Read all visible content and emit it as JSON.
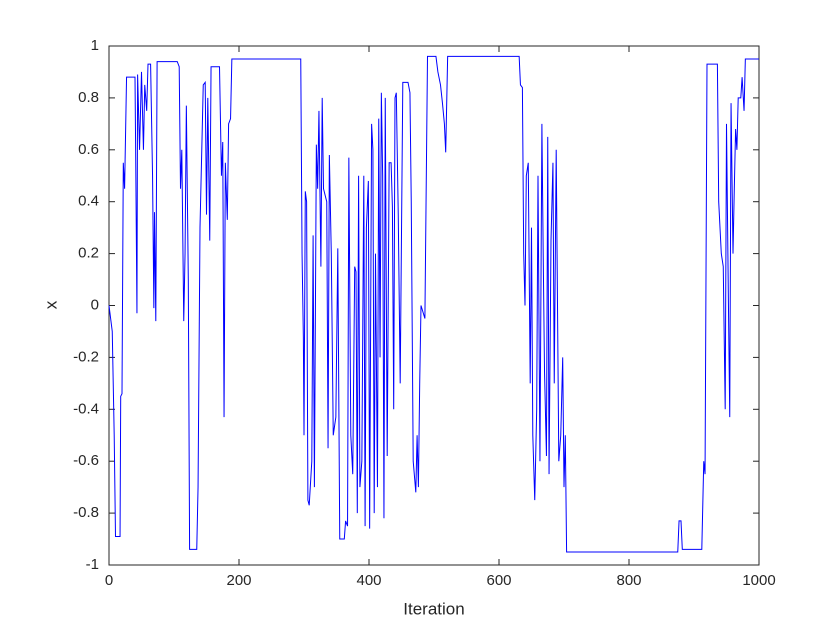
{
  "chart_data": {
    "type": "line",
    "xlabel": "Iteration",
    "ylabel": "x",
    "color": "#0000ff",
    "x": [
      0,
      5,
      8,
      10,
      17,
      18,
      20,
      22,
      24,
      27,
      40,
      41,
      43,
      44,
      47,
      50,
      53,
      55,
      58,
      60,
      64,
      67,
      69,
      70,
      72,
      74,
      105,
      108,
      110,
      112,
      115,
      117,
      119,
      122,
      124,
      135,
      137,
      140,
      145,
      148,
      150,
      152,
      155,
      157,
      170,
      173,
      175,
      177,
      179,
      182,
      184,
      187,
      189,
      295,
      297,
      299,
      300,
      302,
      304,
      306,
      308,
      312,
      314,
      316,
      319,
      321,
      323,
      326,
      328,
      330,
      335,
      337,
      339,
      342,
      345,
      349,
      352,
      355,
      362,
      364,
      367,
      369,
      372,
      375,
      378,
      380,
      382,
      384,
      386,
      389,
      392,
      394,
      396,
      399,
      401,
      404,
      406,
      408,
      410,
      413,
      415,
      417,
      419,
      421,
      423,
      425,
      428,
      431,
      434,
      436,
      438,
      440,
      442,
      445,
      448,
      452,
      460,
      463,
      465,
      468,
      472,
      474,
      476,
      478,
      480,
      486,
      490,
      503,
      506,
      510,
      513,
      516,
      518,
      521,
      631,
      633,
      636,
      638,
      640,
      642,
      645,
      648,
      650,
      652,
      655,
      658,
      660,
      663,
      666,
      668,
      670,
      673,
      675,
      677,
      680,
      683,
      685,
      688,
      692,
      695,
      698,
      700,
      702,
      704,
      875,
      877,
      880,
      882,
      912,
      915,
      917,
      920,
      936,
      938,
      942,
      945,
      948,
      950,
      953,
      955,
      957,
      960,
      962,
      964,
      966,
      968,
      972,
      974,
      977,
      979,
      1000
    ],
    "values": [
      0,
      -0.1,
      -0.5,
      -0.89,
      -0.89,
      -0.35,
      -0.34,
      0.55,
      0.45,
      0.88,
      0.88,
      0.6,
      -0.03,
      0.89,
      0.6,
      0.9,
      0.6,
      0.85,
      0.75,
      0.93,
      0.93,
      0.5,
      -0.01,
      0.36,
      -0.06,
      0.94,
      0.94,
      0.92,
      0.45,
      0.6,
      -0.06,
      0.2,
      0.77,
      0.1,
      -0.94,
      -0.94,
      -0.7,
      0.3,
      0.85,
      0.86,
      0.35,
      0.8,
      0.25,
      0.92,
      0.92,
      0.5,
      0.63,
      -0.43,
      0.55,
      0.33,
      0.7,
      0.72,
      0.95,
      0.95,
      0.2,
      -0.12,
      -0.5,
      0.44,
      0.4,
      -0.75,
      -0.77,
      -0.6,
      0.27,
      -0.7,
      0.62,
      0.45,
      0.75,
      0.15,
      0.8,
      0.45,
      0.4,
      -0.55,
      0.58,
      0.2,
      -0.5,
      -0.43,
      0.22,
      -0.9,
      -0.9,
      -0.83,
      -0.85,
      0.57,
      -0.5,
      -0.65,
      0.15,
      0.13,
      -0.8,
      0.5,
      -0.7,
      -0.6,
      0.5,
      -0.85,
      0.3,
      0.48,
      -0.86,
      0.7,
      0.6,
      -0.8,
      0.2,
      -0.7,
      0.72,
      -0.2,
      0.82,
      0.5,
      -0.82,
      0.8,
      -0.58,
      0.55,
      0.55,
      0.38,
      -0.4,
      0.8,
      0.82,
      0.35,
      -0.3,
      0.86,
      0.86,
      0.82,
      0.4,
      -0.6,
      -0.72,
      -0.5,
      -0.7,
      -0.3,
      0.0,
      -0.05,
      0.96,
      0.96,
      0.9,
      0.85,
      0.78,
      0.7,
      0.59,
      0.96,
      0.96,
      0.85,
      0.84,
      0.2,
      0.0,
      0.5,
      0.55,
      -0.3,
      0.3,
      -0.5,
      -0.75,
      -0.4,
      0.5,
      -0.6,
      0.7,
      0.2,
      -0.25,
      -0.58,
      0.65,
      -0.65,
      0.25,
      0.55,
      -0.3,
      0.6,
      -0.6,
      -0.5,
      -0.2,
      -0.7,
      -0.5,
      -0.95,
      -0.95,
      -0.83,
      -0.83,
      -0.94,
      -0.94,
      -0.6,
      -0.65,
      0.93,
      0.93,
      0.4,
      0.2,
      0.15,
      -0.4,
      0.7,
      0.0,
      -0.43,
      0.78,
      0.2,
      0.45,
      0.68,
      0.6,
      0.8,
      0.8,
      0.88,
      0.75,
      0.95,
      0.95
    ],
    "xlim": [
      0,
      1000
    ],
    "xticks": [
      0,
      200,
      400,
      600,
      800,
      1000
    ],
    "ylim": [
      -1,
      1
    ],
    "yticks": [
      -1,
      -0.8,
      -0.6,
      -0.4,
      -0.2,
      0,
      0.2,
      0.4,
      0.6,
      0.8,
      1
    ]
  }
}
